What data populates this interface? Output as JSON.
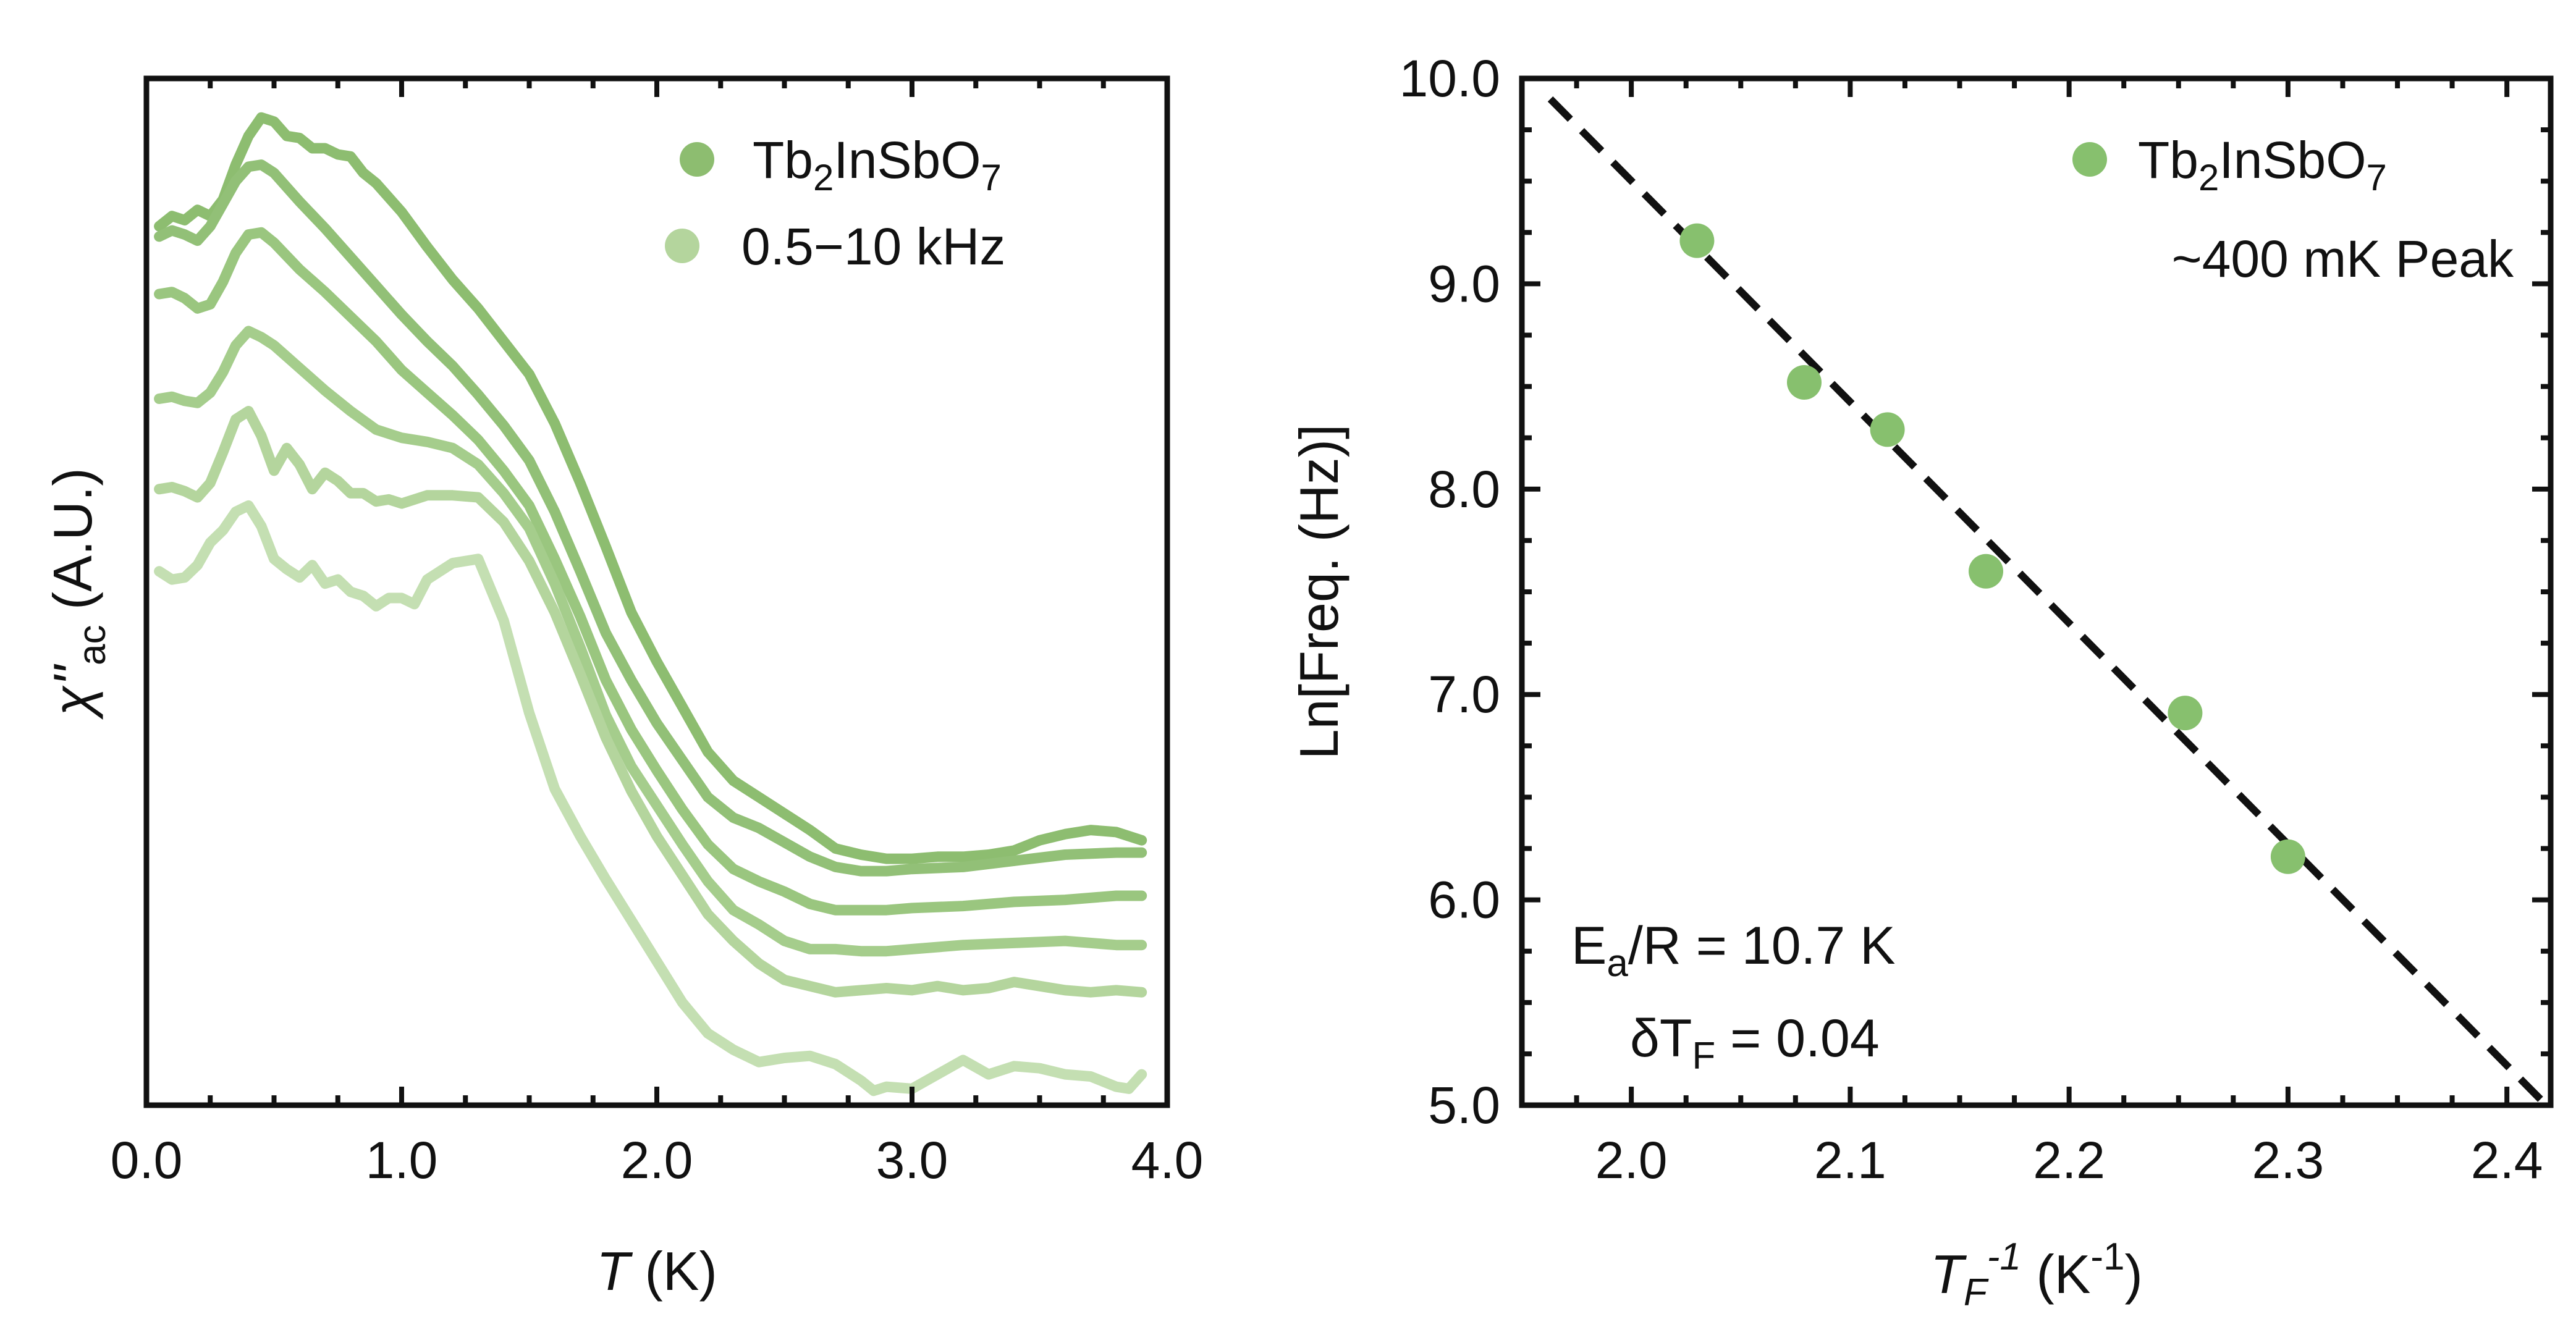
{
  "colors": {
    "series": [
      "#8dbd70",
      "#92c077",
      "#9ac67f",
      "#a5cd8c",
      "#b4d59d",
      "#c4dfb2"
    ],
    "marker": "#87c06e",
    "fit_line": "#111111"
  },
  "chart_data": [
    {
      "type": "line",
      "xlabel": {
        "italic": "T",
        "rest": " (K)"
      },
      "ylabel": {
        "base": "χ''",
        "sub": "ac",
        "rest": " (A.U.)"
      },
      "xlim": [
        0.0,
        4.0
      ],
      "x_ticks": [
        "0.0",
        "1.0",
        "2.0",
        "3.0",
        "4.0"
      ],
      "y_ticks_shown": false,
      "legend": {
        "position": "top-right",
        "entries": [
          {
            "text_parts": [
              "Tb",
              "2",
              "InSbO",
              "7"
            ]
          },
          {
            "text": "0.5−10 kHz"
          }
        ]
      },
      "series": [
        {
          "x": [
            0.05,
            0.1,
            0.15,
            0.2,
            0.25,
            0.3,
            0.35,
            0.4,
            0.45,
            0.5,
            0.55,
            0.6,
            0.65,
            0.7,
            0.75,
            0.8,
            0.85,
            0.9,
            1.0,
            1.1,
            1.2,
            1.3,
            1.4,
            1.5,
            1.6,
            1.7,
            1.8,
            1.9,
            2.0,
            2.1,
            2.2,
            2.3,
            2.4,
            2.5,
            2.6,
            2.7,
            2.8,
            2.9,
            3.0,
            3.1,
            3.2,
            3.3,
            3.4,
            3.5,
            3.6,
            3.7,
            3.8,
            3.9
          ],
          "y": [
            0.856,
            0.866,
            0.862,
            0.872,
            0.866,
            0.882,
            0.916,
            0.944,
            0.962,
            0.958,
            0.944,
            0.942,
            0.932,
            0.932,
            0.926,
            0.924,
            0.908,
            0.898,
            0.87,
            0.836,
            0.804,
            0.776,
            0.744,
            0.712,
            0.664,
            0.606,
            0.544,
            0.48,
            0.432,
            0.388,
            0.344,
            0.316,
            0.3,
            0.284,
            0.268,
            0.25,
            0.244,
            0.24,
            0.24,
            0.242,
            0.242,
            0.244,
            0.248,
            0.258,
            0.264,
            0.268,
            0.266,
            0.258
          ]
        },
        {
          "x": [
            0.05,
            0.1,
            0.15,
            0.2,
            0.25,
            0.3,
            0.35,
            0.4,
            0.45,
            0.5,
            0.6,
            0.7,
            0.8,
            0.9,
            1.0,
            1.1,
            1.2,
            1.3,
            1.4,
            1.5,
            1.6,
            1.7,
            1.8,
            1.9,
            2.0,
            2.1,
            2.2,
            2.3,
            2.4,
            2.5,
            2.6,
            2.7,
            2.8,
            2.9,
            3.0,
            3.2,
            3.4,
            3.6,
            3.8,
            3.9
          ],
          "y": [
            0.846,
            0.852,
            0.848,
            0.842,
            0.856,
            0.878,
            0.9,
            0.914,
            0.916,
            0.908,
            0.88,
            0.854,
            0.826,
            0.798,
            0.77,
            0.744,
            0.72,
            0.692,
            0.662,
            0.628,
            0.578,
            0.52,
            0.46,
            0.414,
            0.372,
            0.336,
            0.3,
            0.28,
            0.27,
            0.256,
            0.242,
            0.232,
            0.228,
            0.228,
            0.23,
            0.232,
            0.238,
            0.244,
            0.246,
            0.246
          ]
        },
        {
          "x": [
            0.05,
            0.1,
            0.15,
            0.2,
            0.25,
            0.3,
            0.35,
            0.4,
            0.45,
            0.5,
            0.6,
            0.7,
            0.8,
            0.9,
            1.0,
            1.1,
            1.2,
            1.3,
            1.4,
            1.5,
            1.6,
            1.7,
            1.8,
            1.9,
            2.0,
            2.1,
            2.2,
            2.3,
            2.4,
            2.5,
            2.6,
            2.7,
            2.8,
            2.9,
            3.0,
            3.2,
            3.4,
            3.6,
            3.8,
            3.9
          ],
          "y": [
            0.79,
            0.792,
            0.786,
            0.776,
            0.78,
            0.802,
            0.83,
            0.848,
            0.85,
            0.84,
            0.814,
            0.792,
            0.768,
            0.744,
            0.716,
            0.694,
            0.672,
            0.648,
            0.618,
            0.584,
            0.532,
            0.476,
            0.414,
            0.366,
            0.326,
            0.288,
            0.254,
            0.23,
            0.218,
            0.208,
            0.196,
            0.19,
            0.19,
            0.19,
            0.192,
            0.194,
            0.198,
            0.2,
            0.204,
            0.204
          ]
        },
        {
          "x": [
            0.05,
            0.1,
            0.15,
            0.2,
            0.25,
            0.3,
            0.35,
            0.4,
            0.45,
            0.5,
            0.6,
            0.7,
            0.8,
            0.9,
            1.0,
            1.1,
            1.2,
            1.3,
            1.4,
            1.5,
            1.6,
            1.7,
            1.8,
            1.9,
            2.0,
            2.1,
            2.2,
            2.3,
            2.4,
            2.5,
            2.6,
            2.7,
            2.8,
            2.9,
            3.0,
            3.2,
            3.4,
            3.6,
            3.8,
            3.9
          ],
          "y": [
            0.688,
            0.69,
            0.686,
            0.684,
            0.694,
            0.714,
            0.74,
            0.754,
            0.748,
            0.74,
            0.718,
            0.696,
            0.676,
            0.658,
            0.65,
            0.646,
            0.64,
            0.624,
            0.596,
            0.562,
            0.508,
            0.446,
            0.38,
            0.33,
            0.292,
            0.254,
            0.218,
            0.19,
            0.176,
            0.16,
            0.152,
            0.152,
            0.15,
            0.15,
            0.152,
            0.156,
            0.158,
            0.16,
            0.156,
            0.156
          ]
        },
        {
          "x": [
            0.05,
            0.1,
            0.15,
            0.2,
            0.25,
            0.3,
            0.35,
            0.4,
            0.45,
            0.5,
            0.55,
            0.6,
            0.65,
            0.7,
            0.75,
            0.8,
            0.85,
            0.9,
            0.95,
            1.0,
            1.1,
            1.2,
            1.3,
            1.4,
            1.5,
            1.6,
            1.7,
            1.8,
            1.9,
            2.0,
            2.1,
            2.2,
            2.3,
            2.4,
            2.5,
            2.6,
            2.7,
            2.8,
            2.9,
            3.0,
            3.1,
            3.2,
            3.3,
            3.4,
            3.5,
            3.6,
            3.7,
            3.8,
            3.9
          ],
          "y": [
            0.6,
            0.602,
            0.598,
            0.592,
            0.606,
            0.636,
            0.668,
            0.676,
            0.652,
            0.618,
            0.64,
            0.624,
            0.6,
            0.616,
            0.608,
            0.596,
            0.596,
            0.588,
            0.59,
            0.586,
            0.594,
            0.594,
            0.592,
            0.568,
            0.53,
            0.48,
            0.42,
            0.358,
            0.306,
            0.262,
            0.224,
            0.186,
            0.16,
            0.138,
            0.122,
            0.116,
            0.11,
            0.112,
            0.114,
            0.112,
            0.116,
            0.112,
            0.114,
            0.12,
            0.116,
            0.112,
            0.11,
            0.112,
            0.11
          ]
        },
        {
          "x": [
            0.05,
            0.1,
            0.15,
            0.2,
            0.25,
            0.3,
            0.35,
            0.4,
            0.45,
            0.5,
            0.55,
            0.6,
            0.65,
            0.7,
            0.75,
            0.8,
            0.85,
            0.9,
            0.95,
            1.0,
            1.05,
            1.1,
            1.2,
            1.3,
            1.4,
            1.5,
            1.6,
            1.7,
            1.8,
            1.9,
            2.0,
            2.1,
            2.2,
            2.3,
            2.4,
            2.5,
            2.6,
            2.7,
            2.8,
            2.85,
            2.9,
            3.0,
            3.1,
            3.2,
            3.3,
            3.4,
            3.5,
            3.6,
            3.7,
            3.8,
            3.85,
            3.9
          ],
          "y": [
            0.52,
            0.512,
            0.514,
            0.526,
            0.548,
            0.56,
            0.578,
            0.584,
            0.564,
            0.532,
            0.522,
            0.514,
            0.526,
            0.508,
            0.512,
            0.5,
            0.496,
            0.486,
            0.494,
            0.494,
            0.488,
            0.512,
            0.528,
            0.532,
            0.472,
            0.382,
            0.308,
            0.262,
            0.22,
            0.18,
            0.14,
            0.1,
            0.07,
            0.054,
            0.042,
            0.046,
            0.048,
            0.04,
            0.024,
            0.014,
            0.018,
            0.016,
            0.03,
            0.044,
            0.03,
            0.038,
            0.036,
            0.03,
            0.028,
            0.018,
            0.016,
            0.03
          ]
        }
      ]
    },
    {
      "type": "scatter",
      "xlabel": {
        "base": "T",
        "sub": "F",
        "sup": "-1",
        "rest": " (K",
        "rest_sup": "-1",
        "end": ")"
      },
      "ylabel": "Ln[Freq. (Hz)]",
      "xlim": [
        1.95,
        2.42
      ],
      "ylim": [
        5.0,
        10.0
      ],
      "x_ticks": [
        "2.0",
        "2.1",
        "2.2",
        "2.3",
        "2.4"
      ],
      "y_ticks": [
        "5.0",
        "6.0",
        "7.0",
        "8.0",
        "9.0",
        "10.0"
      ],
      "legend": {
        "position": "top-right",
        "entries": [
          {
            "text_parts": [
              "Tb",
              "2",
              "InSbO",
              "7"
            ]
          },
          {
            "text": "~400 mK Peak"
          }
        ]
      },
      "points": [
        {
          "x": 2.03,
          "y": 9.21
        },
        {
          "x": 2.079,
          "y": 8.52
        },
        {
          "x": 2.117,
          "y": 8.29
        },
        {
          "x": 2.162,
          "y": 7.6
        },
        {
          "x": 2.253,
          "y": 6.91
        },
        {
          "x": 2.3,
          "y": 6.21
        }
      ],
      "fit_line": {
        "style": "dashed",
        "from": {
          "x": 1.963,
          "y": 9.9
        },
        "to": {
          "x": 2.418,
          "y": 5.0
        }
      },
      "annotations": {
        "line1": {
          "a": "E",
          "a_sub": "a",
          "b": "/R = 10.7 K"
        },
        "line2": {
          "a": "δT",
          "a_sub": "F",
          "b": " = 0.04"
        }
      }
    }
  ]
}
